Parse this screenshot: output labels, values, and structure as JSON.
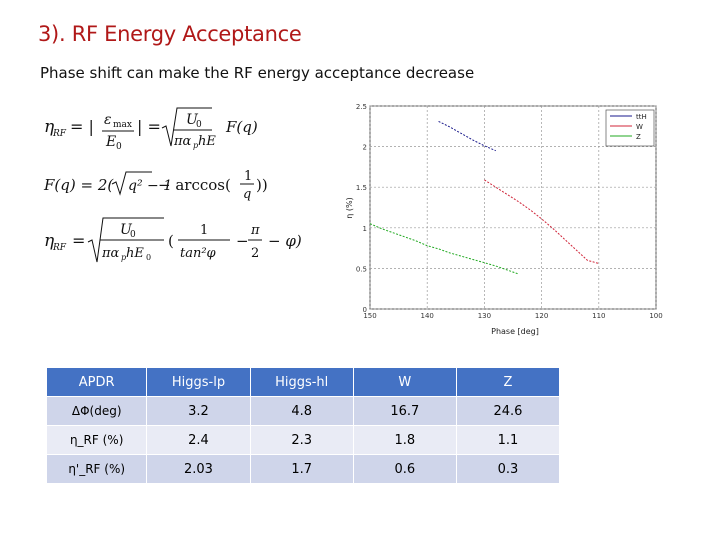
{
  "slide": {
    "title": "3). RF  Energy Acceptance",
    "subtitle": "Phase shift can make the RF energy acceptance decrease"
  },
  "formulas": {
    "eq1_lhs": "η",
    "eq1_sub": "RF",
    "eq1_eps": "ε",
    "eq1_max": "max",
    "eq1_E0": "E",
    "eq1_U0": "U",
    "eq1_den": "πα",
    "eq1_den2": "hE",
    "eq1_F": "F(q)",
    "eq2_text": "F(q) = 2(√(q² − 1) − arccos(1/q))",
    "eq3_one": "1",
    "eq3_tan": "tan²φ",
    "eq3_pi": "π",
    "eq3_two": "2",
    "eq3_phi": "− φ)"
  },
  "chart_data": {
    "type": "line",
    "title": "",
    "xlabel": "Phase [deg]",
    "ylabel": "η (%)",
    "xlim": [
      150,
      100
    ],
    "ylim": [
      0,
      2.5
    ],
    "x_reversed": true,
    "xticks": [
      150,
      140,
      130,
      120,
      110,
      100
    ],
    "xtick_labels": [
      "150",
      "140",
      "130",
      "120",
      "110",
      "100"
    ],
    "yticks": [
      0,
      0.5,
      1,
      1.5,
      2,
      2.5
    ],
    "ytick_labels": [
      "0",
      "0.5",
      "1",
      "1.5",
      "2",
      "2.5"
    ],
    "grid": true,
    "legend_position": "top-right",
    "series": [
      {
        "name": "ttH",
        "color": "#1a1a8c",
        "x": [
          138,
          136,
          134,
          132,
          130,
          128
        ],
        "y": [
          2.31,
          2.24,
          2.16,
          2.08,
          2.01,
          1.95
        ]
      },
      {
        "name": "W",
        "color": "#d0263a",
        "x": [
          130,
          128,
          126,
          124,
          122,
          120,
          118,
          116,
          114,
          112,
          110
        ],
        "y": [
          1.59,
          1.5,
          1.41,
          1.32,
          1.22,
          1.11,
          0.99,
          0.86,
          0.73,
          0.6,
          0.56
        ]
      },
      {
        "name": "Z",
        "color": "#22aa22",
        "x": [
          150,
          148,
          146,
          144,
          142,
          140,
          138,
          136,
          134,
          132,
          130,
          128,
          126,
          124
        ],
        "y": [
          1.05,
          0.99,
          0.94,
          0.89,
          0.84,
          0.78,
          0.74,
          0.69,
          0.65,
          0.61,
          0.57,
          0.53,
          0.48,
          0.43
        ]
      }
    ]
  },
  "table": {
    "headers": [
      "APDR",
      "Higgs-lp",
      "Higgs-hl",
      "W",
      "Z"
    ],
    "rows": [
      {
        "label": "ΔΦ(deg)",
        "values": [
          "3.2",
          "4.8",
          "16.7",
          "24.6"
        ]
      },
      {
        "label": "η_RF (%)",
        "values": [
          "2.4",
          "2.3",
          "1.8",
          "1.1"
        ]
      },
      {
        "label": "η'_RF (%)",
        "values": [
          "2.03",
          "1.7",
          "0.6",
          "0.3"
        ]
      }
    ]
  }
}
